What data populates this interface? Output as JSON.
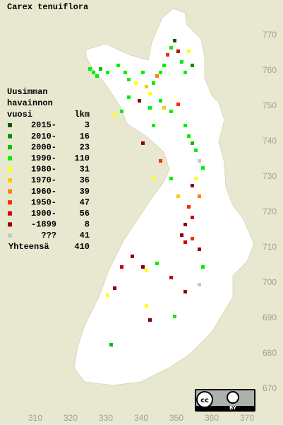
{
  "title": "Carex tenuiflora",
  "legend": {
    "header": [
      "Uusimman",
      "havainnon",
      "vuosi"
    ],
    "count_header": "lkm",
    "items": [
      {
        "label": "2015-",
        "count": 3,
        "color": "#005a00"
      },
      {
        "label": "2010-",
        "count": 16,
        "color": "#009000"
      },
      {
        "label": "2000-",
        "count": 23,
        "color": "#00c000"
      },
      {
        "label": "1990-",
        "count": 110,
        "color": "#00f000"
      },
      {
        "label": "1980-",
        "count": 31,
        "color": "#ffff00"
      },
      {
        "label": "1970-",
        "count": 36,
        "color": "#ffc800"
      },
      {
        "label": "1960-",
        "count": 39,
        "color": "#ff8000"
      },
      {
        "label": "1950-",
        "count": 47,
        "color": "#f03000"
      },
      {
        "label": "1900-",
        "count": 56,
        "color": "#d00000"
      },
      {
        "label": "-1899",
        "count": 8,
        "color": "#900000"
      },
      {
        "label": "???",
        "count": 41,
        "color": "#c8c8c8"
      }
    ],
    "total_label": "Yhteensä",
    "total": 410
  },
  "xlim": [
    300,
    380
  ],
  "ylim": [
    780,
    660
  ],
  "xticks": [
    310,
    320,
    330,
    340,
    350,
    360,
    370
  ],
  "yticks": [
    670,
    680,
    690,
    700,
    710,
    720,
    730,
    740,
    750,
    760,
    770
  ],
  "observations": [
    [
      325,
      761,
      3
    ],
    [
      326,
      760,
      3
    ],
    [
      327,
      759,
      3
    ],
    [
      328,
      761,
      2
    ],
    [
      330,
      760,
      3
    ],
    [
      333,
      762,
      3
    ],
    [
      335,
      760,
      3
    ],
    [
      336,
      758,
      3
    ],
    [
      338,
      757,
      4
    ],
    [
      340,
      760,
      3
    ],
    [
      341,
      756,
      5
    ],
    [
      342,
      754,
      4
    ],
    [
      343,
      757,
      3
    ],
    [
      344,
      759,
      6
    ],
    [
      345,
      760,
      3
    ],
    [
      346,
      762,
      3
    ],
    [
      347,
      765,
      7
    ],
    [
      348,
      767,
      3
    ],
    [
      349,
      769,
      0
    ],
    [
      350,
      766,
      8
    ],
    [
      351,
      763,
      3
    ],
    [
      352,
      760,
      3
    ],
    [
      353,
      766,
      4
    ],
    [
      354,
      762,
      1
    ],
    [
      345,
      752,
      3
    ],
    [
      346,
      750,
      5
    ],
    [
      348,
      749,
      3
    ],
    [
      350,
      751,
      7
    ],
    [
      342,
      750,
      3
    ],
    [
      339,
      752,
      9
    ],
    [
      336,
      753,
      3
    ],
    [
      334,
      749,
      3
    ],
    [
      332,
      748,
      4
    ],
    [
      352,
      745,
      3
    ],
    [
      353,
      742,
      3
    ],
    [
      354,
      740,
      2
    ],
    [
      355,
      738,
      3
    ],
    [
      356,
      735,
      10
    ],
    [
      357,
      733,
      3
    ],
    [
      355,
      730,
      4
    ],
    [
      354,
      728,
      9
    ],
    [
      356,
      725,
      6
    ],
    [
      353,
      722,
      7
    ],
    [
      354,
      719,
      8
    ],
    [
      352,
      717,
      9
    ],
    [
      351,
      714,
      9
    ],
    [
      352,
      712,
      8
    ],
    [
      354,
      713,
      7
    ],
    [
      356,
      710,
      9
    ],
    [
      357,
      705,
      3
    ],
    [
      356,
      700,
      10
    ],
    [
      352,
      698,
      9
    ],
    [
      348,
      702,
      8
    ],
    [
      344,
      706,
      3
    ],
    [
      341,
      704,
      4
    ],
    [
      340,
      705,
      9
    ],
    [
      337,
      708,
      9
    ],
    [
      334,
      705,
      8
    ],
    [
      332,
      699,
      9
    ],
    [
      330,
      697,
      4
    ],
    [
      341,
      694,
      4
    ],
    [
      349,
      691,
      3
    ],
    [
      342,
      690,
      9
    ],
    [
      331,
      683,
      2
    ],
    [
      340,
      740,
      9
    ],
    [
      345,
      735,
      7
    ],
    [
      343,
      730,
      4
    ],
    [
      348,
      730,
      3
    ],
    [
      350,
      725,
      5
    ],
    [
      343,
      745,
      3
    ]
  ],
  "license": [
    "cc",
    "BY"
  ]
}
